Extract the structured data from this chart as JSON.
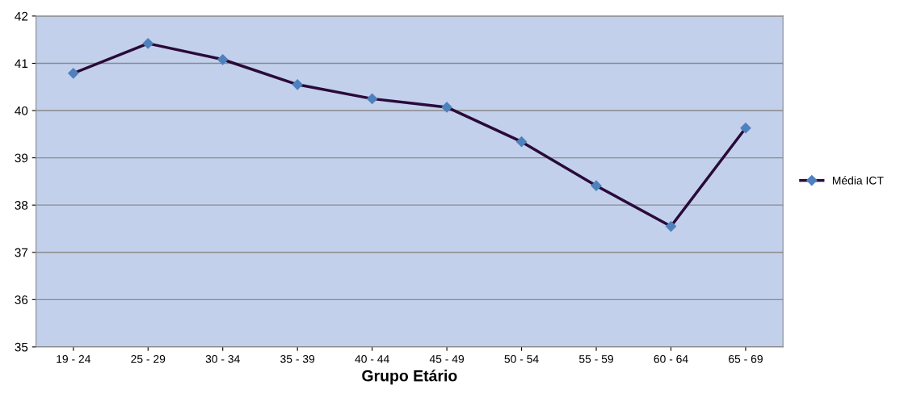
{
  "chart_data": {
    "type": "line",
    "xlabel": "Grupo Etário",
    "categories": [
      "19 - 24",
      "25 - 29",
      "30 - 34",
      "35 - 39",
      "40 - 44",
      "45 - 49",
      "50 - 54",
      "55 - 59",
      "60 - 64",
      "65 - 69"
    ],
    "series": [
      {
        "name": "Média ICT",
        "color": "#2a0a3a",
        "values": [
          40.79,
          41.42,
          41.08,
          40.55,
          40.25,
          40.07,
          39.34,
          38.41,
          37.55,
          39.63
        ]
      }
    ],
    "ylim": [
      35,
      42
    ],
    "yticks": [
      35,
      36,
      37,
      38,
      39,
      40,
      41,
      42
    ],
    "grid": "y",
    "legend": "right",
    "marker": "diamond",
    "line_style": "solid"
  }
}
